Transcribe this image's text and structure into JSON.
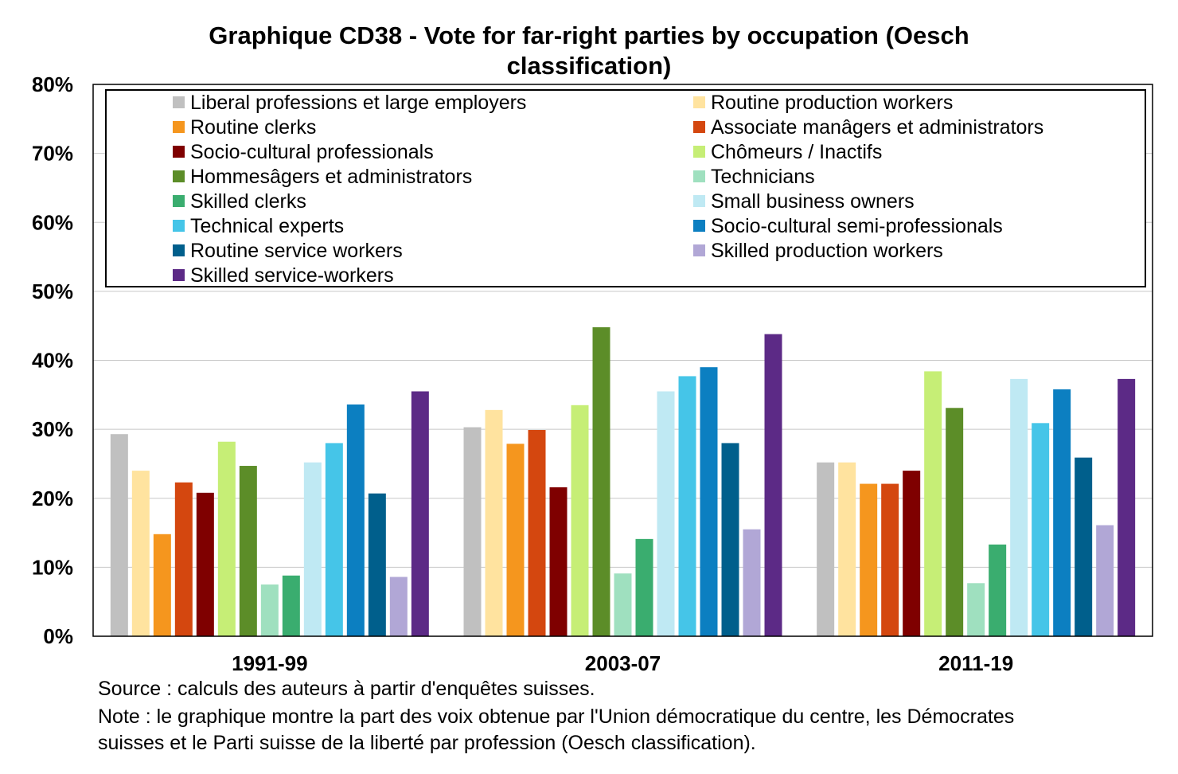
{
  "chart_data": {
    "type": "bar",
    "title_lines": [
      "Graphique CD38 - Vote for far-right parties by occupation (Oesch",
      "classification)"
    ],
    "categories": [
      "1991-99",
      "2003-07",
      "2011-19"
    ],
    "ylim": [
      0,
      80
    ],
    "yticks": [
      0,
      10,
      20,
      30,
      40,
      50,
      60,
      70,
      80
    ],
    "ytick_labels": [
      "0%",
      "10%",
      "20%",
      "30%",
      "40%",
      "50%",
      "60%",
      "70%",
      "80%"
    ],
    "grid": true,
    "legend_position": "top",
    "series": [
      {
        "name": "Liberal professions et large employers",
        "color": "#c0c0c0",
        "values": [
          29.3,
          30.3,
          25.2
        ]
      },
      {
        "name": "Routine production workers",
        "color": "#ffe39f",
        "values": [
          24.0,
          32.8,
          25.2
        ]
      },
      {
        "name": "Routine clerks",
        "color": "#f5961e",
        "values": [
          14.8,
          27.9,
          22.1
        ]
      },
      {
        "name": "Associate manâgers et administrators",
        "color": "#d4470f",
        "values": [
          22.3,
          29.9,
          22.1
        ]
      },
      {
        "name": "Socio-cultural professionals",
        "color": "#7f0000",
        "values": [
          20.8,
          21.6,
          24.0
        ]
      },
      {
        "name": "Chômeurs / Inactifs",
        "color": "#c6ee76",
        "values": [
          28.2,
          33.5,
          38.4
        ]
      },
      {
        "name": "Hommesâgers et administrators",
        "color": "#5c8d28",
        "values": [
          24.7,
          44.8,
          33.1
        ]
      },
      {
        "name": "Technicians",
        "color": "#9fe0bf",
        "values": [
          7.5,
          9.1,
          7.7
        ]
      },
      {
        "name": "Skilled clerks",
        "color": "#3aad6f",
        "values": [
          8.8,
          14.1,
          13.3
        ]
      },
      {
        "name": "Small business owners",
        "color": "#bfe9f3",
        "values": [
          25.2,
          35.5,
          37.3
        ]
      },
      {
        "name": "Technical experts",
        "color": "#45c5e8",
        "values": [
          28.0,
          37.7,
          30.9
        ]
      },
      {
        "name": "Socio-cultural semi-professionals",
        "color": "#0c7fc1",
        "values": [
          33.6,
          39.0,
          35.8
        ]
      },
      {
        "name": "Routine service workers",
        "color": "#005f8c",
        "values": [
          20.7,
          28.0,
          25.9
        ]
      },
      {
        "name": "Skilled production workers",
        "color": "#b1a7d6",
        "values": [
          8.6,
          15.5,
          16.1
        ]
      },
      {
        "name": "Skilled service-workers",
        "color": "#5c2a86",
        "values": [
          35.5,
          43.8,
          37.3
        ]
      }
    ]
  },
  "notes": {
    "source": "Source : calculs des auteurs à partir d'enquêtes suisses.",
    "note_line1": "Note : le graphique montre la part des voix obtenue par l'Union démocratique du centre, les Démocrates",
    "note_line2": "suisses et le Parti suisse de la liberté par profession (Oesch classification)."
  }
}
